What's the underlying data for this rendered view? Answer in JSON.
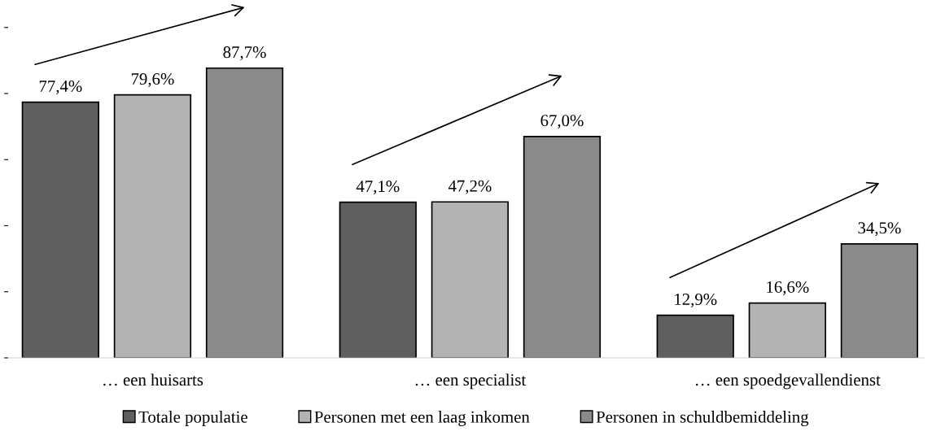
{
  "chart_data": {
    "type": "bar",
    "categories": [
      "… een huisarts",
      "… een specialist",
      "… een spoedgevallendienst"
    ],
    "series": [
      {
        "name": "Totale populatie",
        "color": "#5f5f5f",
        "values": [
          77.4,
          47.1,
          12.9
        ],
        "value_labels": [
          "77,4%",
          "47,1%",
          "12,9%"
        ]
      },
      {
        "name": "Personen met een laag inkomen",
        "color": "#b3b3b3",
        "values": [
          79.6,
          47.2,
          16.6
        ],
        "value_labels": [
          "79,6%",
          "47,2%",
          "16,6%"
        ]
      },
      {
        "name": "Personen in schuldbemiddeling",
        "color": "#8a8a8a",
        "values": [
          87.7,
          67.0,
          34.5
        ],
        "value_labels": [
          "87,7%",
          "67,0%",
          "34,5%"
        ]
      }
    ],
    "legend": "bottom",
    "grid": false
  }
}
